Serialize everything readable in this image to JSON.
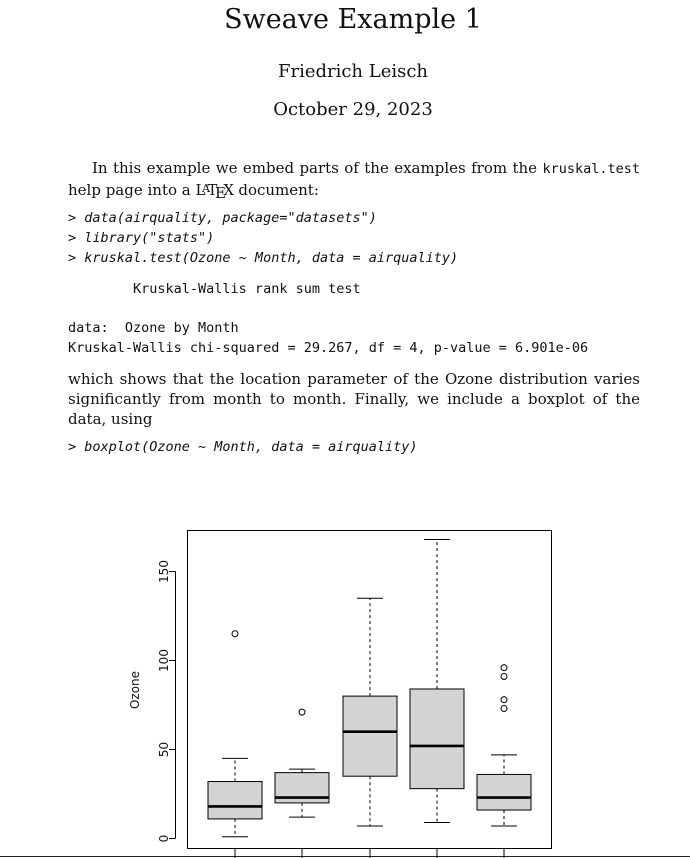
{
  "doc": {
    "title": "Sweave Example 1",
    "author": "Friedrich Leisch",
    "date": "October 29, 2023",
    "p1_text1": "In this example we embed parts of the examples from the ",
    "p1_code": "kruskal.test",
    "p1_text2": " help page into a ",
    "latex_L": "L",
    "latex_A": "A",
    "latex_T": "T",
    "latex_E": "E",
    "latex_X": "X",
    "p1_text3": " document:",
    "code_input_1": "> data(airquality, package=\"datasets\")\n> library(\"stats\")\n> kruskal.test(Ozone ~ Month, data = airquality)",
    "output_title": "        Kruskal-Wallis rank sum test",
    "output_body": "data:  Ozone by Month\nKruskal-Wallis chi-squared = 29.267, df = 4, p-value = 6.901e-06",
    "p2_text": "which shows that the location parameter of the Ozone distribution varies significantly from month to month. Finally, we include a boxplot of the data, using",
    "code_input_2": "> boxplot(Ozone ~ Month, data = airquality)"
  },
  "chart_data": {
    "type": "boxplot",
    "ylabel": "Ozone",
    "ylim": [
      0,
      170
    ],
    "yticks": [
      0,
      50,
      100,
      150
    ],
    "boxes": [
      {
        "whisker_low": 1,
        "q1": 11,
        "median": 18,
        "q3": 32,
        "whisker_high": 45,
        "outliers": [
          115
        ]
      },
      {
        "whisker_low": 12,
        "q1": 20,
        "median": 23,
        "q3": 37,
        "whisker_high": 39,
        "outliers": [
          71
        ]
      },
      {
        "whisker_low": 7,
        "q1": 35,
        "median": 60,
        "q3": 80,
        "whisker_high": 135,
        "outliers": []
      },
      {
        "whisker_low": 9,
        "q1": 28,
        "median": 52,
        "q3": 84,
        "whisker_high": 168,
        "outliers": []
      },
      {
        "whisker_low": 7,
        "q1": 16,
        "median": 23,
        "q3": 36,
        "whisker_high": 47,
        "outliers": [
          73,
          78,
          91,
          96
        ]
      }
    ],
    "box_fill": "#d3d3d3",
    "grid": false
  }
}
